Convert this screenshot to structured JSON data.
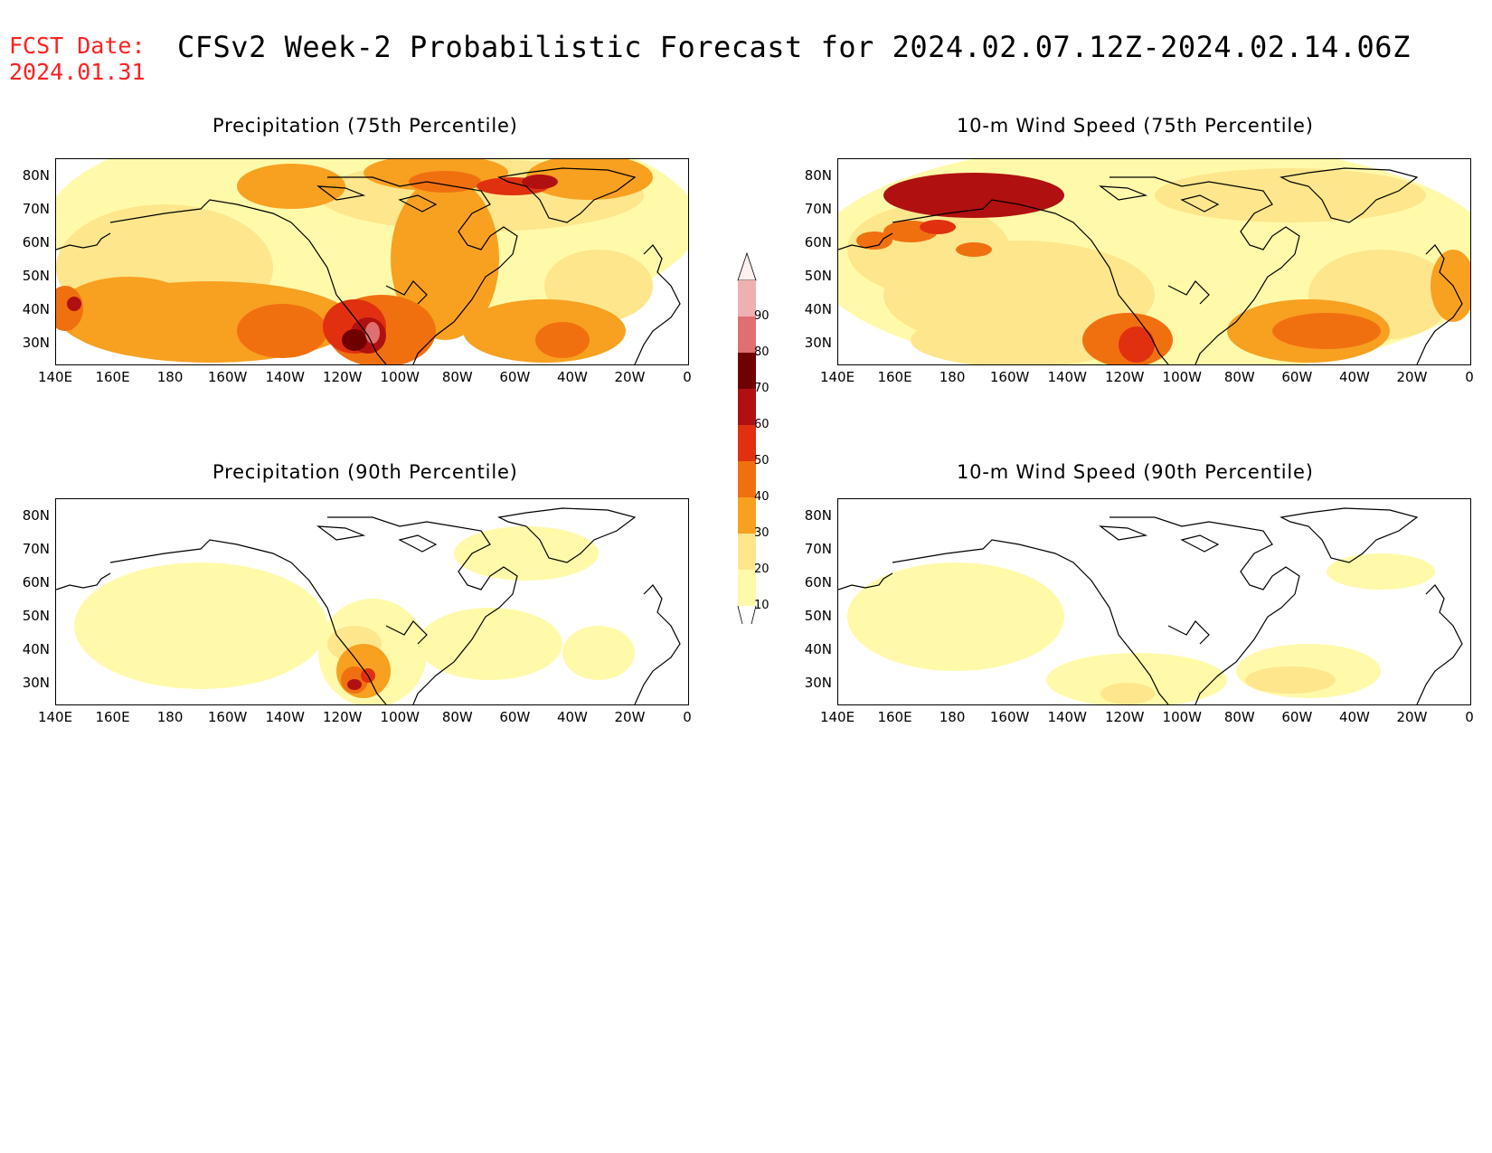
{
  "header": {
    "fcst_label": "FCST Date:",
    "fcst_date": "2024.01.31",
    "title": "CFSv2 Week-2 Probabilistic Forecast for 2024.02.07.12Z-2024.02.14.06Z"
  },
  "axes": {
    "lat_labels": [
      "80N",
      "70N",
      "60N",
      "50N",
      "40N",
      "30N"
    ],
    "lon_labels": [
      "140E",
      "160E",
      "180",
      "160W",
      "140W",
      "120W",
      "100W",
      "80W",
      "60W",
      "40W",
      "20W",
      "0"
    ]
  },
  "panels": [
    {
      "id": "p1",
      "title": "Precipitation (75th Percentile)"
    },
    {
      "id": "p2",
      "title": "10-m Wind Speed (75th Percentile)"
    },
    {
      "id": "p3",
      "title": "Precipitation (90th Percentile)"
    },
    {
      "id": "p4",
      "title": "10-m Wind Speed (90th Percentile)"
    }
  ],
  "colorbar": {
    "levels": [
      "10",
      "20",
      "30",
      "40",
      "50",
      "60",
      "70",
      "80",
      "90"
    ],
    "colors": [
      "#fffaaa",
      "#fde68c",
      "#f8a020",
      "#f07010",
      "#e03010",
      "#b01010",
      "#700000",
      "#e07070",
      "#f0b0b0"
    ]
  }
}
